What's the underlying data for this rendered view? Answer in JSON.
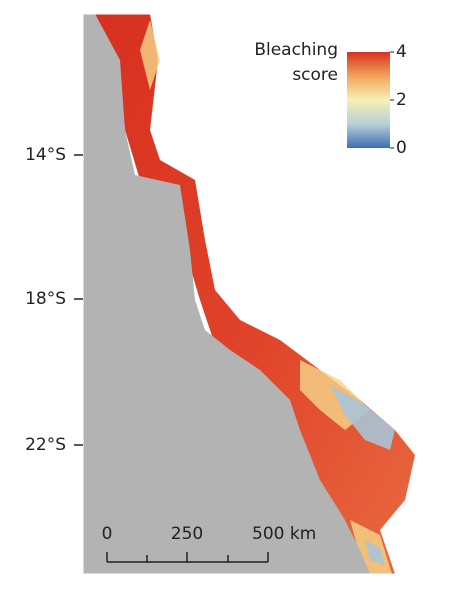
{
  "map": {
    "legend": {
      "title_lines": [
        "Bleaching",
        "score"
      ],
      "lim": [
        0,
        4
      ],
      "ticks": [
        4,
        2,
        0
      ],
      "colors": [
        "#3d6eb4",
        "#b8d0d8",
        "#f6f1b4",
        "#f3a35a",
        "#d7301f"
      ]
    },
    "latitude_labels": [
      "14°S",
      "18°S",
      "22°S"
    ],
    "scale_bar": {
      "labels": [
        "0",
        "250",
        "500 km"
      ]
    }
  }
}
